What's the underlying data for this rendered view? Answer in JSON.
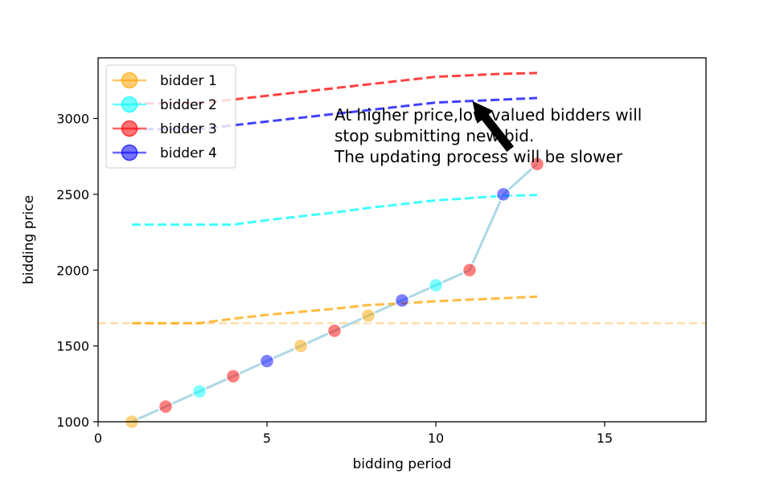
{
  "chart_data": {
    "type": "line",
    "title": "",
    "xlabel": "bidding period",
    "ylabel": "bidding price",
    "xlim": [
      0,
      18
    ],
    "ylim": [
      1000,
      3400
    ],
    "xticks": [
      0,
      5,
      10,
      15
    ],
    "yticks": [
      1000,
      1500,
      2000,
      2500,
      3000
    ],
    "grid": false,
    "legend_position": "top-left",
    "series": [
      {
        "name": "bidder 1",
        "color": "#FFA500",
        "x": [
          1,
          2,
          3,
          4,
          5,
          6,
          7,
          8,
          9,
          10,
          11,
          12,
          13
        ],
        "values": [
          1650,
          1650,
          1650,
          1680,
          1705,
          1725,
          1745,
          1770,
          1780,
          1795,
          1805,
          1815,
          1825
        ]
      },
      {
        "name": "bidder 2",
        "color": "#00FFFF",
        "x": [
          1,
          2,
          3,
          4,
          5,
          6,
          7,
          8,
          9,
          10,
          11,
          12,
          13
        ],
        "values": [
          2300,
          2300,
          2300,
          2300,
          2330,
          2355,
          2380,
          2410,
          2435,
          2460,
          2475,
          2490,
          2495
        ]
      },
      {
        "name": "bidder 3",
        "color": "#FF0000",
        "x": [
          1,
          2,
          3,
          4,
          5,
          6,
          7,
          8,
          9,
          10,
          11,
          12,
          13
        ],
        "values": [
          3100,
          3100,
          3100,
          3125,
          3150,
          3175,
          3200,
          3225,
          3250,
          3275,
          3285,
          3295,
          3300
        ]
      },
      {
        "name": "bidder 4",
        "color": "#0000FF",
        "x": [
          1,
          2,
          3,
          4,
          5,
          6,
          7,
          8,
          9,
          10,
          11,
          12,
          13
        ],
        "values": [
          2930,
          2930,
          2930,
          2955,
          2980,
          3005,
          3030,
          3055,
          3080,
          3105,
          3115,
          3125,
          3135
        ]
      }
    ],
    "reference_line": {
      "y": 1650,
      "color": "#FFDEAD"
    },
    "price_path": {
      "color": "#ADD8E6",
      "points": [
        {
          "x": 1,
          "y": 1000,
          "bidder": 1
        },
        {
          "x": 2,
          "y": 1100,
          "bidder": 3
        },
        {
          "x": 3,
          "y": 1200,
          "bidder": 2
        },
        {
          "x": 4,
          "y": 1300,
          "bidder": 3
        },
        {
          "x": 5,
          "y": 1400,
          "bidder": 4
        },
        {
          "x": 6,
          "y": 1500,
          "bidder": 1
        },
        {
          "x": 7,
          "y": 1600,
          "bidder": 3
        },
        {
          "x": 8,
          "y": 1700,
          "bidder": 1
        },
        {
          "x": 9,
          "y": 1800,
          "bidder": 4
        },
        {
          "x": 10,
          "y": 1900,
          "bidder": 2
        },
        {
          "x": 11,
          "y": 2000,
          "bidder": 3
        },
        {
          "x": 12,
          "y": 2500,
          "bidder": 4
        },
        {
          "x": 13,
          "y": 2700,
          "bidder": 3
        }
      ]
    },
    "annotation": {
      "lines": [
        "At higher price,low valued bidders will",
        "stop submitting new bid.",
        "The updating process will be slower"
      ],
      "text_at": {
        "x": 7.0,
        "y": 2710
      },
      "arrow_to": {
        "x": 11.1,
        "y": 3110
      },
      "arrow_from": {
        "x": 12.2,
        "y": 2800
      }
    }
  }
}
